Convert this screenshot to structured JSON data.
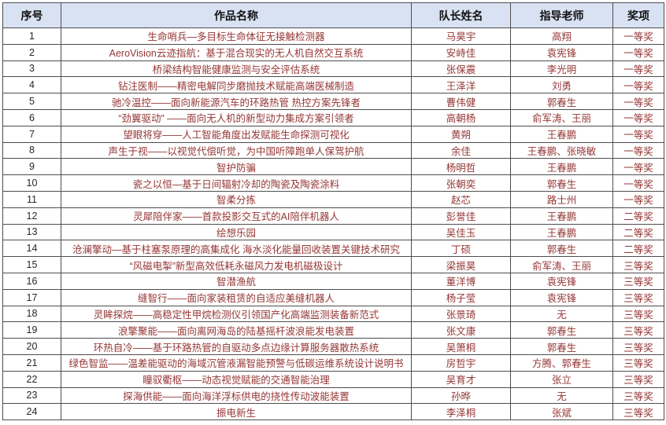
{
  "colors": {
    "header_bg": "#D9E2F3",
    "border": "#4d4d4d",
    "body_text": "#943634",
    "number_text": "#262626",
    "header_text": "#111111"
  },
  "table": {
    "columns": [
      "序号",
      "作品名称",
      "队长姓名",
      "指导老师",
      "奖项"
    ],
    "rows": [
      {
        "no": "1",
        "title": "生命哨兵—多目标生命体征无接触检测器",
        "captain": "马昊宇",
        "advisor": "高翔",
        "award": "一等奖"
      },
      {
        "no": "2",
        "title": "AeroVision云迹指航：基于混合现实的无人机自然交互系统",
        "captain": "安峙佳",
        "advisor": "袁宪锋",
        "award": "一等奖"
      },
      {
        "no": "3",
        "title": "桥梁结构智能健康监测与安全评估系统",
        "captain": "张保震",
        "advisor": "李光明",
        "award": "一等奖"
      },
      {
        "no": "4",
        "title": "钻注医制——精密电解同步磨抛技术赋能高端医械制造",
        "captain": "王泽洋",
        "advisor": "刘勇",
        "award": "一等奖"
      },
      {
        "no": "5",
        "title": "驰冷温控——面向新能源汽车的环路热管 热控方案先锋者",
        "captain": "曹伟健",
        "advisor": "郭春生",
        "award": "一等奖"
      },
      {
        "no": "6",
        "title": "“劲翼驱动” ——面向无人机的新型动力集成方案引领者",
        "captain": "高朝杨",
        "advisor": "俞军涛、王丽",
        "award": "一等奖"
      },
      {
        "no": "7",
        "title": "望眼将穿——人工智能角度出发赋能生命探测可视化",
        "captain": "黄朔",
        "advisor": "王春鹏",
        "award": "一等奖"
      },
      {
        "no": "8",
        "title": "声生于视——以视觉代偿听觉，为中国听障跑单人保驾护航",
        "captain": "余佳",
        "advisor": "王春鹏、张晓敏",
        "award": "一等奖"
      },
      {
        "no": "9",
        "title": "智护防骗",
        "captain": "杨明哲",
        "advisor": "王春鹏",
        "award": "一等奖"
      },
      {
        "no": "10",
        "title": "瓷之以恒—基于日间辐射冷却的陶瓷及陶瓷涂料",
        "captain": "张朝奕",
        "advisor": "郭春生",
        "award": "一等奖"
      },
      {
        "no": "11",
        "title": "智柔分拣",
        "captain": "赵芯",
        "advisor": "路士州",
        "award": "一等奖"
      },
      {
        "no": "12",
        "title": "灵犀陪伴家——首款投影交互式的AI陪伴机器人",
        "captain": "彭誉佳",
        "advisor": "王春鹏",
        "award": "二等奖"
      },
      {
        "no": "13",
        "title": "绘想乐园",
        "captain": "吴佳玉",
        "advisor": "王春鹏",
        "award": "二等奖"
      },
      {
        "no": "14",
        "title": "沧澜擎动—基于柱塞泵原理的高集成化 海水淡化能量回收装置关键技术研究",
        "captain": "丁硕",
        "advisor": "郭春生",
        "award": "二等奖"
      },
      {
        "no": "15",
        "title": "“风磁电掣”新型高效低耗永磁风力发电机磁极设计",
        "captain": "梁振昊",
        "advisor": "俞军涛、王丽",
        "award": "三等奖"
      },
      {
        "no": "16",
        "title": "智潜渔航",
        "captain": "董洋博",
        "advisor": "袁宪锋",
        "award": "三等奖"
      },
      {
        "no": "17",
        "title": "缝智行——面向家装租赁的自适应美缝机器人",
        "captain": "杨子莹",
        "advisor": "袁宪锋",
        "award": "三等奖"
      },
      {
        "no": "18",
        "title": "灵眸探烷——高稳定性甲烷检测仪引领国产化高端监测装备新范式",
        "captain": "张景琦",
        "advisor": "无",
        "award": "三等奖"
      },
      {
        "no": "19",
        "title": "浪擎聚能——面向离网海岛的陆基摇杆波浪能发电装置",
        "captain": "张文康",
        "advisor": "郭春生",
        "award": "三等奖"
      },
      {
        "no": "20",
        "title": "环热自冷——基于环路热管的自驱动多点边缘计算服务器散热系统",
        "captain": "吴箫桐",
        "advisor": "郭春生",
        "award": "三等奖"
      },
      {
        "no": "21",
        "title": "绿色智监——温差能驱动的海域沉管液漏智能预警与低碳运维系统设计说明书",
        "captain": "房哲宇",
        "advisor": "方腾、郭春生",
        "award": "三等奖"
      },
      {
        "no": "22",
        "title": "瞳驭衢枢——动态视觉赋能的交通智能治理",
        "captain": "吴育才",
        "advisor": "张立",
        "award": "三等奖"
      },
      {
        "no": "23",
        "title": "探海供能——面向海洋浮标供电的挠性传动波能装置",
        "captain": "孙晔",
        "advisor": "无",
        "award": "三等奖"
      },
      {
        "no": "24",
        "title": "振电新生",
        "captain": "李泽桐",
        "advisor": "张斌",
        "award": "三等奖"
      }
    ]
  }
}
